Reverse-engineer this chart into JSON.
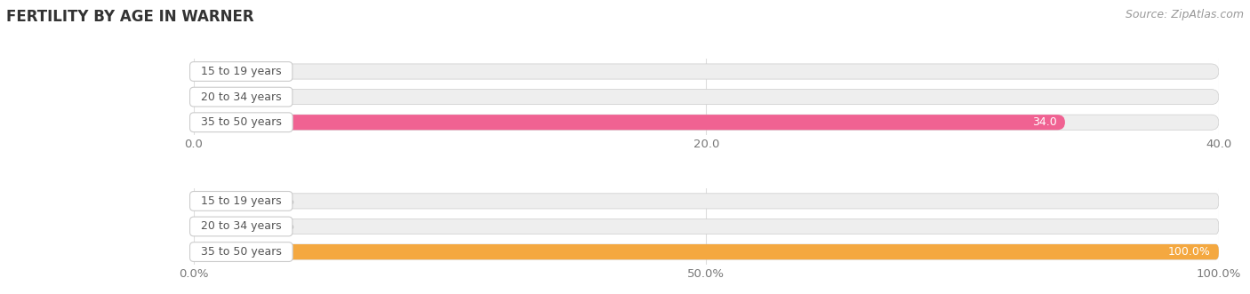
{
  "title": "FERTILITY BY AGE IN WARNER",
  "source": "Source: ZipAtlas.com",
  "top_chart": {
    "categories": [
      "15 to 19 years",
      "20 to 34 years",
      "35 to 50 years"
    ],
    "values": [
      0.0,
      0.0,
      34.0
    ],
    "max_val": 40.0,
    "xticks": [
      0.0,
      20.0,
      40.0
    ],
    "xtick_labels": [
      "0.0",
      "20.0",
      "40.0"
    ],
    "bar_color": "#F06292",
    "bar_light_color": "#F8BBD9",
    "bar_bg_color": "#EEEEEE",
    "value_label_threshold": 5.0,
    "is_percent": false
  },
  "bottom_chart": {
    "categories": [
      "15 to 19 years",
      "20 to 34 years",
      "35 to 50 years"
    ],
    "values": [
      0.0,
      0.0,
      100.0
    ],
    "max_val": 100.0,
    "xticks": [
      0.0,
      50.0,
      100.0
    ],
    "xtick_labels": [
      "0.0%",
      "50.0%",
      "100.0%"
    ],
    "bar_color": "#F4A840",
    "bar_light_color": "#FDDCAA",
    "bar_bg_color": "#EEEEEE",
    "value_label_threshold": 10.0,
    "is_percent": true
  },
  "bg_color": "#ffffff",
  "bar_height": 0.6,
  "title_fontsize": 12,
  "tick_fontsize": 9.5,
  "label_fontsize": 9,
  "value_fontsize": 9,
  "source_fontsize": 9,
  "source_color": "#999999",
  "label_box_facecolor": "#ffffff",
  "label_box_edgecolor": "#cccccc",
  "label_text_color": "#555555",
  "grid_color": "#dddddd",
  "outside_value_color": "#aaaaaa"
}
